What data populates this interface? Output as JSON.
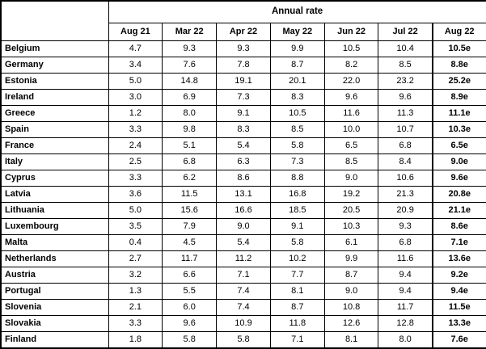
{
  "chart_data": {
    "type": "table",
    "title": "Annual rate",
    "columns": [
      "Aug 21",
      "Mar 22",
      "Apr 22",
      "May 22",
      "Jun 22",
      "Jul 22",
      "Aug 22"
    ],
    "rows": [
      {
        "country": "Belgium",
        "values": [
          "4.7",
          "9.3",
          "9.3",
          "9.9",
          "10.5",
          "10.4",
          "10.5e"
        ]
      },
      {
        "country": "Germany",
        "values": [
          "3.4",
          "7.6",
          "7.8",
          "8.7",
          "8.2",
          "8.5",
          "8.8e"
        ]
      },
      {
        "country": "Estonia",
        "values": [
          "5.0",
          "14.8",
          "19.1",
          "20.1",
          "22.0",
          "23.2",
          "25.2e"
        ]
      },
      {
        "country": "Ireland",
        "values": [
          "3.0",
          "6.9",
          "7.3",
          "8.3",
          "9.6",
          "9.6",
          "8.9e"
        ]
      },
      {
        "country": "Greece",
        "values": [
          "1.2",
          "8.0",
          "9.1",
          "10.5",
          "11.6",
          "11.3",
          "11.1e"
        ]
      },
      {
        "country": "Spain",
        "values": [
          "3.3",
          "9.8",
          "8.3",
          "8.5",
          "10.0",
          "10.7",
          "10.3e"
        ]
      },
      {
        "country": "France",
        "values": [
          "2.4",
          "5.1",
          "5.4",
          "5.8",
          "6.5",
          "6.8",
          "6.5e"
        ]
      },
      {
        "country": "Italy",
        "values": [
          "2.5",
          "6.8",
          "6.3",
          "7.3",
          "8.5",
          "8.4",
          "9.0e"
        ]
      },
      {
        "country": "Cyprus",
        "values": [
          "3.3",
          "6.2",
          "8.6",
          "8.8",
          "9.0",
          "10.6",
          "9.6e"
        ]
      },
      {
        "country": "Latvia",
        "values": [
          "3.6",
          "11.5",
          "13.1",
          "16.8",
          "19.2",
          "21.3",
          "20.8e"
        ]
      },
      {
        "country": "Lithuania",
        "values": [
          "5.0",
          "15.6",
          "16.6",
          "18.5",
          "20.5",
          "20.9",
          "21.1e"
        ]
      },
      {
        "country": "Luxembourg",
        "values": [
          "3.5",
          "7.9",
          "9.0",
          "9.1",
          "10.3",
          "9.3",
          "8.6e"
        ]
      },
      {
        "country": "Malta",
        "values": [
          "0.4",
          "4.5",
          "5.4",
          "5.8",
          "6.1",
          "6.8",
          "7.1e"
        ]
      },
      {
        "country": "Netherlands",
        "values": [
          "2.7",
          "11.7",
          "11.2",
          "10.2",
          "9.9",
          "11.6",
          "13.6e"
        ]
      },
      {
        "country": "Austria",
        "values": [
          "3.2",
          "6.6",
          "7.1",
          "7.7",
          "8.7",
          "9.4",
          "9.2e"
        ]
      },
      {
        "country": "Portugal",
        "values": [
          "1.3",
          "5.5",
          "7.4",
          "8.1",
          "9.0",
          "9.4",
          "9.4e"
        ]
      },
      {
        "country": "Slovenia",
        "values": [
          "2.1",
          "6.0",
          "7.4",
          "8.7",
          "10.8",
          "11.7",
          "11.5e"
        ]
      },
      {
        "country": "Slovakia",
        "values": [
          "3.3",
          "9.6",
          "10.9",
          "11.8",
          "12.6",
          "12.8",
          "13.3e"
        ]
      },
      {
        "country": "Finland",
        "values": [
          "1.8",
          "5.8",
          "5.8",
          "7.1",
          "8.1",
          "8.0",
          "7.6e"
        ]
      }
    ]
  }
}
